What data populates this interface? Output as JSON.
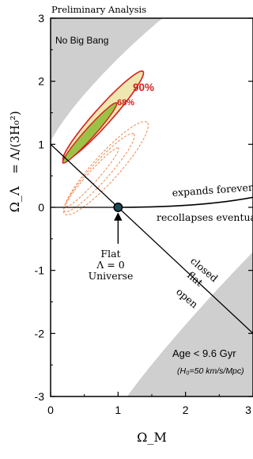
{
  "chart_data": {
    "type": "contour",
    "header": "Preliminary Analysis",
    "xlabel": "Ω_M",
    "ylabel_symbol": "Ω_Λ",
    "ylabel_formula": "= Λ/(3H₀²)",
    "xlim": [
      0,
      3
    ],
    "ylim": [
      -3,
      3
    ],
    "x_ticks": [
      0,
      1,
      2,
      3
    ],
    "y_ticks": [
      -3,
      -2,
      -1,
      0,
      1,
      2,
      3
    ],
    "regions": {
      "no_big_bang_label": "No Big Bang",
      "age_label": "Age < 9.6 Gyr",
      "age_sublabel": "(H₀=50 km/s/Mpc)"
    },
    "confidence_labels": [
      "68%",
      "90%"
    ],
    "curve_labels": {
      "expands": "expands forever",
      "recollapses": "recollapses eventually",
      "closed": "closed",
      "flat": "flat",
      "open": "open"
    },
    "flat_universe_label": [
      "Flat",
      "Λ = 0",
      "Universe"
    ],
    "flat_universe_point": {
      "x": 1,
      "y": 0
    },
    "flat_line": {
      "from": [
        0,
        1
      ],
      "to": [
        3,
        -2
      ]
    },
    "colors": {
      "region_gray": "#cfcfcf",
      "contour_red": "#d42020",
      "fill_68": "#9bc247",
      "fill_90": "#efe7b0",
      "point_fill": "#1a4a55"
    }
  }
}
